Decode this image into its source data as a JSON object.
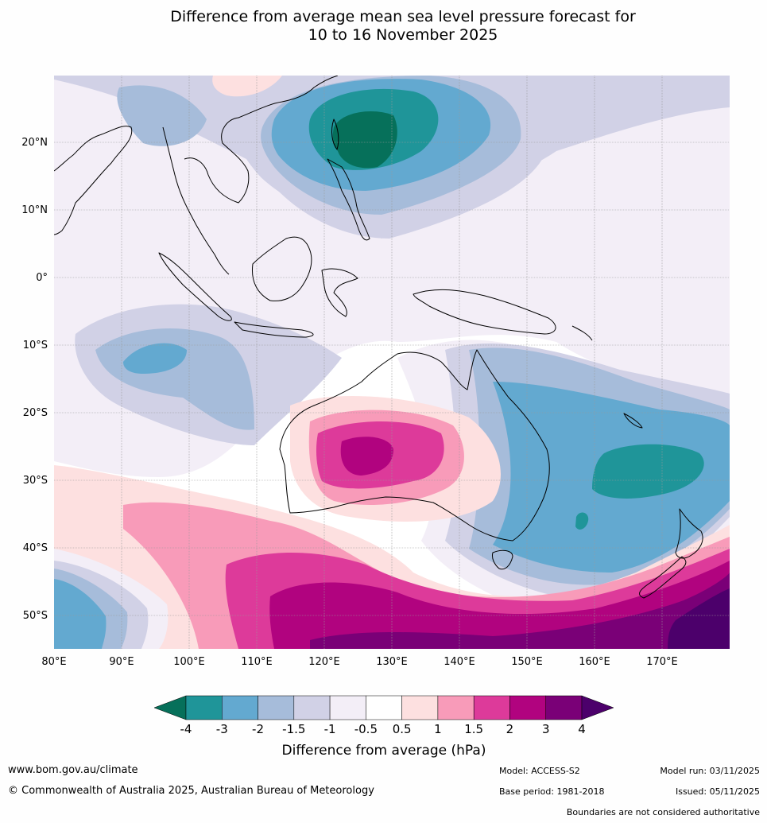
{
  "title_line1": "Difference from average mean sea level pressure forecast for",
  "title_line2": "10 to 16 November 2025",
  "map": {
    "lat_labels": [
      "20°N",
      "10°N",
      "0°",
      "10°S",
      "20°S",
      "30°S",
      "40°S",
      "50°S"
    ],
    "lon_labels": [
      "80°E",
      "90°E",
      "100°E",
      "110°E",
      "120°E",
      "130°E",
      "140°E",
      "150°E",
      "160°E",
      "170°E"
    ]
  },
  "colorbar": {
    "title": "Difference from average (hPa)",
    "ticks": [
      "-4",
      "-3",
      "-2",
      "-1.5",
      "-1",
      "-0.5",
      "0.5",
      "1",
      "1.5",
      "2",
      "3",
      "4"
    ],
    "colors": [
      "#06705a",
      "#1f9599",
      "#63a9d0",
      "#a6bcda",
      "#d1d1e6",
      "#f3eef7",
      "#ffffff",
      "#fde0e0",
      "#f89bb9",
      "#dd3a9a",
      "#b1037f",
      "#7a0077",
      "#4c006b"
    ]
  },
  "footer": {
    "url": "www.bom.gov.au/climate",
    "copyright": "© Commonwealth of Australia 2025, Australian Bureau of Meteorology",
    "model": "Model: ACCESS-S2",
    "base_period": "Base period: 1981-2018",
    "model_run": "Model run: 03/11/2025",
    "issued": "Issued: 05/11/2025",
    "disclaimer": "Boundaries are not considered authoritative"
  }
}
